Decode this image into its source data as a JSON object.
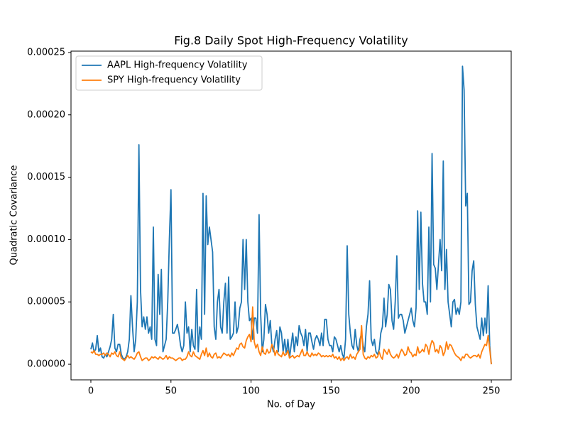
{
  "chart_data": {
    "type": "line",
    "title": "Fig.8 Daily Spot High-Frequency Volatility",
    "xlabel": "No. of Day",
    "ylabel": "Quadratic Covariance",
    "xlim": [
      -12.4,
      262.4
    ],
    "ylim": [
      -1.25e-05,
      0.0002511
    ],
    "xticks": [
      0,
      50,
      100,
      150,
      200,
      250
    ],
    "yticks": [
      {
        "value": 0,
        "label": "0.00000"
      },
      {
        "value": 5e-05,
        "label": "0.00005"
      },
      {
        "value": 0.0001,
        "label": "0.00010"
      },
      {
        "value": 0.00015,
        "label": "0.00015"
      },
      {
        "value": 0.0002,
        "label": "0.00020"
      },
      {
        "value": 0.00025,
        "label": "0.00025"
      }
    ],
    "legend": "upper left",
    "grid": false,
    "x": [
      0,
      1,
      2,
      3,
      4,
      5,
      6,
      7,
      8,
      9,
      10,
      11,
      12,
      13,
      14,
      15,
      16,
      17,
      18,
      19,
      20,
      21,
      22,
      23,
      24,
      25,
      26,
      27,
      28,
      29,
      30,
      31,
      32,
      33,
      34,
      35,
      36,
      37,
      38,
      39,
      40,
      41,
      42,
      43,
      44,
      45,
      46,
      47,
      48,
      49,
      50,
      51,
      52,
      53,
      54,
      55,
      56,
      57,
      58,
      59,
      60,
      61,
      62,
      63,
      64,
      65,
      66,
      67,
      68,
      69,
      70,
      71,
      72,
      73,
      74,
      75,
      76,
      77,
      78,
      79,
      80,
      81,
      82,
      83,
      84,
      85,
      86,
      87,
      88,
      89,
      90,
      91,
      92,
      93,
      94,
      95,
      96,
      97,
      98,
      99,
      100,
      101,
      102,
      103,
      104,
      105,
      106,
      107,
      108,
      109,
      110,
      111,
      112,
      113,
      114,
      115,
      116,
      117,
      118,
      119,
      120,
      121,
      122,
      123,
      124,
      125,
      126,
      127,
      128,
      129,
      130,
      131,
      132,
      133,
      134,
      135,
      136,
      137,
      138,
      139,
      140,
      141,
      142,
      143,
      144,
      145,
      146,
      147,
      148,
      149,
      150,
      151,
      152,
      153,
      154,
      155,
      156,
      157,
      158,
      159,
      160,
      161,
      162,
      163,
      164,
      165,
      166,
      167,
      168,
      169,
      170,
      171,
      172,
      173,
      174,
      175,
      176,
      177,
      178,
      179,
      180,
      181,
      182,
      183,
      184,
      185,
      186,
      187,
      188,
      189,
      190,
      191,
      192,
      193,
      194,
      195,
      196,
      197,
      198,
      199,
      200,
      201,
      202,
      203,
      204,
      205,
      206,
      207,
      208,
      209,
      210,
      211,
      212,
      213,
      214,
      215,
      216,
      217,
      218,
      219,
      220,
      221,
      222,
      223,
      224,
      225,
      226,
      227,
      228,
      229,
      230,
      231,
      232,
      233,
      234,
      235,
      236,
      237,
      238,
      239,
      240,
      241,
      242,
      243,
      244,
      245,
      246,
      247,
      248,
      249,
      250
    ],
    "series": [
      {
        "name": "AAPL High-frequency Volatility",
        "color": "#1f77b4",
        "values": [
          1.2e-05,
          1.7e-05,
          1e-05,
          1.2e-05,
          2.3e-05,
          1e-05,
          1.3e-05,
          6e-06,
          5e-06,
          8e-06,
          6e-06,
          1e-05,
          1.4e-05,
          2e-05,
          4e-05,
          1.3e-05,
          1e-05,
          1.6e-05,
          1.6e-05,
          8e-06,
          5e-06,
          4e-06,
          6e-06,
          1e-05,
          2e-05,
          5.5e-05,
          3e-05,
          1e-05,
          2e-05,
          5e-05,
          0.000176,
          6e-05,
          3e-05,
          3.8e-05,
          2.8e-05,
          3.8e-05,
          2.5e-05,
          3e-05,
          2e-05,
          0.00011,
          2e-05,
          1.5e-05,
          7.2e-05,
          4e-05,
          7.6e-05,
          1e-05,
          1.5e-05,
          2e-05,
          5e-05,
          0.0001,
          0.00014,
          2.5e-05,
          2.5e-05,
          2.8e-05,
          3.2e-05,
          2.5e-05,
          1.5e-05,
          1e-05,
          1.5e-05,
          5e-05,
          2.5e-05,
          3e-05,
          1e-05,
          2.8e-05,
          1.5e-05,
          1.2e-05,
          6e-05,
          1e-05,
          3e-05,
          2e-05,
          0.000137,
          4e-05,
          0.000135,
          9.6e-05,
          0.00011,
          0.0001,
          9e-05,
          3e-05,
          2e-05,
          5e-05,
          6e-05,
          3e-05,
          2.5e-05,
          5e-05,
          6.5e-05,
          2.5e-05,
          7e-05,
          2e-05,
          2.2e-05,
          2.5e-05,
          5e-05,
          2.5e-05,
          3e-05,
          4.5e-05,
          5e-05,
          0.0001,
          6e-05,
          0.0001,
          5e-05,
          3.5e-05,
          3.7e-05,
          2e-05,
          3.7e-05,
          3.7e-05,
          2.5e-05,
          0.00012,
          4e-05,
          1e-05,
          2e-05,
          4.8e-05,
          4e-05,
          2.5e-05,
          3.5e-05,
          1.5e-05,
          1e-05,
          2e-05,
          2.7e-05,
          1e-05,
          3e-05,
          2.5e-05,
          1e-05,
          2e-05,
          8e-06,
          2e-05,
          5e-06,
          1.5e-05,
          2.5e-05,
          1e-05,
          2.2e-05,
          1.5e-05,
          3.1e-05,
          2.5e-05,
          2.2e-05,
          1.5e-05,
          2.8e-05,
          1e-05,
          2.5e-05,
          2.5e-05,
          1.8e-05,
          1.2e-05,
          2e-05,
          2.3e-05,
          2e-05,
          1.5e-05,
          2.5e-05,
          1.5e-05,
          3.6e-05,
          3.6e-05,
          2e-05,
          1.5e-05,
          1.5e-05,
          1e-05,
          2.2e-05,
          2e-05,
          1.5e-05,
          1e-05,
          1.5e-05,
          8e-06,
          5e-06,
          2e-05,
          9.5e-05,
          4e-05,
          2.5e-05,
          1.5e-05,
          1.2e-05,
          2.8e-05,
          1.5e-05,
          1e-05,
          2e-05,
          2.5e-05,
          1.5e-05,
          1e-05,
          3e-05,
          4e-05,
          6.7e-05,
          2e-05,
          1.5e-05,
          2e-05,
          1e-05,
          8e-06,
          1.2e-05,
          2.5e-05,
          3e-05,
          5.3e-05,
          3e-05,
          4e-05,
          6.4e-05,
          6e-05,
          3.5e-05,
          2.8e-05,
          5e-05,
          8.7e-05,
          3.7e-05,
          4e-05,
          4e-05,
          3.5e-05,
          2.5e-05,
          3e-05,
          3.5e-05,
          4e-05,
          4.5e-05,
          3.5e-05,
          3e-05,
          4.5e-05,
          0.000123,
          6e-05,
          0.000122,
          6.5e-05,
          5e-05,
          5e-05,
          4e-05,
          0.00011,
          5e-05,
          0.000169,
          8e-05,
          7.7e-05,
          6e-05,
          8e-05,
          0.0001,
          7.5e-05,
          0.000163,
          6e-05,
          9.2e-05,
          5e-05,
          4e-05,
          3e-05,
          5e-05,
          5.2e-05,
          4e-05,
          4.5e-05,
          4e-05,
          5e-05,
          0.000239,
          0.00022,
          0.000127,
          0.000137,
          4.8e-05,
          5e-05,
          7.5e-05,
          8.3e-05,
          4.8e-05,
          3e-05,
          2.5e-05,
          2e-05,
          3.7e-05,
          2.3e-05,
          3.7e-05,
          2.5e-05,
          6.3e-05,
          1.5e-05,
          0
        ]
      },
      {
        "name": "SPY High-frequency Volatility",
        "color": "#ff7f0e",
        "values": [
          1e-05,
          9e-06,
          1.1e-05,
          8e-06,
          8e-06,
          7e-06,
          8e-06,
          8e-06,
          9e-06,
          7e-06,
          9e-06,
          8e-06,
          6e-06,
          9e-06,
          8e-06,
          1e-05,
          7e-06,
          6e-06,
          1e-05,
          5e-06,
          4e-06,
          3e-06,
          5e-06,
          7e-06,
          5e-06,
          6e-06,
          5e-06,
          4e-06,
          6e-06,
          9e-06,
          1e-05,
          6e-06,
          3e-06,
          4e-06,
          5e-06,
          5e-06,
          3e-06,
          4e-06,
          6e-06,
          5e-06,
          6e-06,
          5e-06,
          4e-06,
          6e-06,
          5e-06,
          4e-06,
          5e-06,
          7e-06,
          4e-06,
          6e-06,
          5e-06,
          5e-06,
          4e-06,
          3e-06,
          4e-06,
          5e-06,
          5e-06,
          3e-06,
          4e-06,
          4e-06,
          6e-06,
          1e-05,
          7e-06,
          6e-06,
          1e-05,
          7e-06,
          6e-06,
          5e-06,
          4e-06,
          8e-06,
          1.1e-05,
          7e-06,
          1.3e-05,
          6e-06,
          9e-06,
          6e-06,
          5e-06,
          8e-06,
          9e-06,
          5e-06,
          6e-06,
          5e-06,
          7e-06,
          9e-06,
          8e-06,
          7e-06,
          8e-06,
          6e-06,
          9e-06,
          7e-06,
          1e-05,
          1.3e-05,
          1.2e-05,
          1.6e-05,
          1.7e-05,
          1.4e-05,
          1.3e-05,
          1.9e-05,
          2.2e-05,
          2.4e-05,
          1.8e-05,
          4.6e-05,
          1.8e-05,
          1.3e-05,
          1.6e-05,
          1e-05,
          7e-06,
          1.4e-05,
          9e-06,
          8e-06,
          1.2e-05,
          9e-06,
          1e-05,
          1.6e-05,
          1.3e-05,
          7e-06,
          1.1e-05,
          8e-06,
          7e-06,
          6e-06,
          1e-05,
          7e-06,
          8e-06,
          1.1e-05,
          5e-06,
          6e-06,
          7e-06,
          5e-06,
          6e-06,
          7e-06,
          6e-06,
          9e-06,
          1.2e-05,
          7e-06,
          7e-06,
          1e-05,
          7e-06,
          6e-06,
          9e-06,
          7e-06,
          8e-06,
          7e-06,
          9e-06,
          8e-06,
          6e-06,
          7e-06,
          6e-06,
          7e-06,
          6e-06,
          7e-06,
          6e-06,
          8e-06,
          5e-06,
          6e-06,
          4e-06,
          6e-06,
          3e-06,
          5e-06,
          3e-06,
          5e-06,
          6e-06,
          4e-06,
          8e-06,
          5e-06,
          6e-06,
          4e-06,
          8e-06,
          1e-05,
          1.2e-05,
          3.1e-05,
          8e-06,
          5e-06,
          4e-06,
          6e-06,
          5e-06,
          7e-06,
          6e-06,
          8e-06,
          5e-06,
          6e-06,
          1e-05,
          6e-06,
          4e-06,
          1.2e-05,
          1e-05,
          8e-06,
          1.2e-05,
          8e-06,
          6e-06,
          5e-06,
          6e-06,
          8e-06,
          5e-06,
          9e-06,
          1.2e-05,
          1e-05,
          7e-06,
          8e-06,
          1.4e-05,
          1e-05,
          9e-06,
          6e-06,
          8e-06,
          7e-06,
          1.4e-05,
          9e-06,
          1e-05,
          1.2e-05,
          1e-05,
          1.6e-05,
          1.4e-05,
          8e-06,
          1.5e-05,
          1.9e-05,
          1.7e-05,
          1e-05,
          1.2e-05,
          9e-06,
          1.5e-05,
          1.3e-05,
          7e-06,
          1e-05,
          1.8e-05,
          1.2e-05,
          1.6e-05,
          1.5e-05,
          1.2e-05,
          9e-06,
          7e-06,
          6e-06,
          5e-06,
          3e-06,
          6e-06,
          5e-06,
          8e-06,
          8e-06,
          6e-06,
          5e-06,
          6e-06,
          7e-06,
          7e-06,
          6e-06,
          8e-06,
          5e-06,
          1e-05,
          1.3e-05,
          1.6e-05,
          1.5e-05,
          2.3e-05,
          1.2e-05,
          0
        ]
      }
    ]
  }
}
